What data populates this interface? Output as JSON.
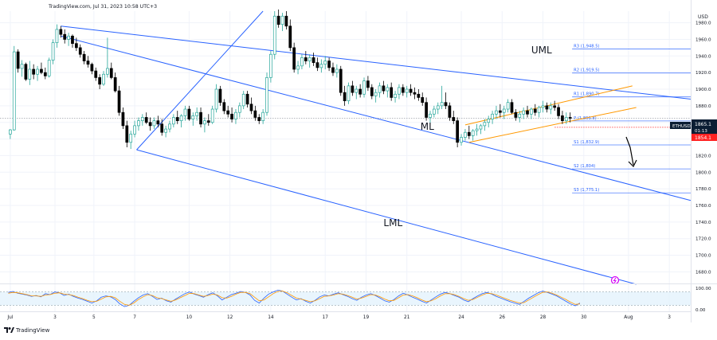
{
  "header": {
    "text": "TradingView.com, Jul 31, 2023 10:58 UTC+3"
  },
  "footer": {
    "logo_text": "TradingView"
  },
  "colors": {
    "up": "#26a69a",
    "down": "#000000",
    "channel": "#2962ff",
    "orange": "#ff9800",
    "price_tag": "#ff2222",
    "symbol_tag": "#0b1d33"
  },
  "chart_data": {
    "type": "candlestick",
    "symbol": "ETHUSD",
    "currency_label": "USD",
    "y_ticks": [
      "1980.0",
      "1960.0",
      "1940.0",
      "1920.0",
      "1900.0",
      "1880.0",
      "1860.0",
      "1840.0",
      "1820.0",
      "1800.0",
      "1780.0",
      "1760.0",
      "1740.0",
      "1720.0",
      "1700.0",
      "1680.0"
    ],
    "ylim": [
      1666,
      1994
    ],
    "x_ticks": [
      "Jul",
      "3",
      "5",
      "7",
      "10",
      "12",
      "14",
      "17",
      "19",
      "21",
      "24",
      "26",
      "28",
      "30",
      "Aug",
      "3"
    ],
    "x_tick_days": [
      0,
      2.3,
      4.3,
      6.4,
      9.2,
      11.3,
      13.4,
      16.2,
      18.3,
      20.4,
      23.2,
      25.3,
      27.4,
      29.5,
      31.8,
      33.9
    ],
    "xlim": [
      -0.2,
      35
    ],
    "last_price_label": "1865.1",
    "countdown_label": "01:13",
    "bid_label": "1854.1",
    "last_price": 1865.1,
    "bid_price": 1854.1,
    "pivots": [
      {
        "label": "R3 (1,948.5)",
        "value": 1948.5
      },
      {
        "label": "R2 (1,919.5)",
        "value": 1919.5
      },
      {
        "label": "R1 (1,890.7)",
        "value": 1890.7
      },
      {
        "label": "P (1,861.8)",
        "value": 1861.8
      },
      {
        "label": "S1 (1,832.9)",
        "value": 1832.9
      },
      {
        "label": "S2 (1,804)",
        "value": 1804
      },
      {
        "label": "S3 (1,775.1)",
        "value": 1775.1
      }
    ],
    "annotations": [
      {
        "text": "UML",
        "day": 26.8,
        "price": 1943
      },
      {
        "text": "ML",
        "day": 21.1,
        "price": 1851
      },
      {
        "text": "LML",
        "day": 19.2,
        "price": 1735
      }
    ],
    "pitchfork": {
      "origin": {
        "day": 6.5,
        "price": 1827
      },
      "upper_start": {
        "day": 2.6,
        "price": 1976
      },
      "upper_end": {
        "day": 35,
        "price": 1888
      },
      "median_end": {
        "day": 35,
        "price": 1766
      },
      "lower_end": {
        "day": 32.2,
        "price": 1665
      },
      "top_end": {
        "day": 13.0,
        "price": 1994
      }
    },
    "orange_lines": [
      {
        "from": {
          "day": 23.4,
          "price": 1857
        },
        "to": {
          "day": 32.0,
          "price": 1904
        }
      },
      {
        "from": {
          "day": 23.6,
          "price": 1836
        },
        "to": {
          "day": 32.2,
          "price": 1878
        }
      }
    ],
    "candles": [
      [
        0.0,
        1846,
        1852,
        1840,
        1851
      ],
      [
        0.2,
        1851,
        1952,
        1850,
        1945
      ],
      [
        0.4,
        1945,
        1948,
        1920,
        1925
      ],
      [
        0.6,
        1925,
        1935,
        1915,
        1930
      ],
      [
        0.8,
        1930,
        1932,
        1910,
        1912
      ],
      [
        1.0,
        1912,
        1934,
        1905,
        1924
      ],
      [
        1.2,
        1924,
        1930,
        1912,
        1918
      ],
      [
        1.4,
        1918,
        1928,
        1910,
        1924
      ],
      [
        1.6,
        1924,
        1932,
        1918,
        1920
      ],
      [
        1.8,
        1920,
        1926,
        1912,
        1916
      ],
      [
        2.0,
        1916,
        1938,
        1914,
        1935
      ],
      [
        2.2,
        1935,
        1960,
        1930,
        1956
      ],
      [
        2.4,
        1956,
        1978,
        1950,
        1972
      ],
      [
        2.6,
        1972,
        1976,
        1962,
        1966
      ],
      [
        2.8,
        1966,
        1972,
        1955,
        1960
      ],
      [
        3.0,
        1960,
        1968,
        1952,
        1964
      ],
      [
        3.2,
        1964,
        1966,
        1950,
        1955
      ],
      [
        3.4,
        1955,
        1962,
        1946,
        1950
      ],
      [
        3.6,
        1950,
        1954,
        1938,
        1942
      ],
      [
        3.8,
        1942,
        1946,
        1930,
        1934
      ],
      [
        4.0,
        1934,
        1940,
        1926,
        1930
      ],
      [
        4.2,
        1930,
        1932,
        1918,
        1922
      ],
      [
        4.4,
        1922,
        1926,
        1910,
        1914
      ],
      [
        4.6,
        1914,
        1918,
        1900,
        1906
      ],
      [
        4.8,
        1906,
        1922,
        1904,
        1918
      ],
      [
        5.0,
        1918,
        1962,
        1914,
        1925
      ],
      [
        5.2,
        1925,
        1932,
        1912,
        1914
      ],
      [
        5.4,
        1914,
        1920,
        1896,
        1898
      ],
      [
        5.6,
        1898,
        1904,
        1868,
        1872
      ],
      [
        5.8,
        1872,
        1878,
        1852,
        1856
      ],
      [
        6.0,
        1856,
        1862,
        1830,
        1836
      ],
      [
        6.2,
        1836,
        1850,
        1828,
        1846
      ],
      [
        6.4,
        1846,
        1862,
        1842,
        1856
      ],
      [
        6.6,
        1856,
        1866,
        1850,
        1862
      ],
      [
        6.8,
        1862,
        1870,
        1856,
        1866
      ],
      [
        7.0,
        1866,
        1872,
        1858,
        1860
      ],
      [
        7.2,
        1860,
        1866,
        1850,
        1856
      ],
      [
        7.4,
        1856,
        1866,
        1852,
        1862
      ],
      [
        7.6,
        1862,
        1868,
        1854,
        1858
      ],
      [
        7.8,
        1858,
        1864,
        1844,
        1848
      ],
      [
        8.0,
        1848,
        1856,
        1842,
        1852
      ],
      [
        8.2,
        1852,
        1862,
        1848,
        1858
      ],
      [
        8.4,
        1858,
        1870,
        1854,
        1866
      ],
      [
        8.6,
        1866,
        1874,
        1858,
        1862
      ],
      [
        8.8,
        1862,
        1870,
        1854,
        1868
      ],
      [
        9.0,
        1868,
        1880,
        1862,
        1876
      ],
      [
        9.2,
        1876,
        1880,
        1862,
        1864
      ],
      [
        9.4,
        1864,
        1872,
        1856,
        1868
      ],
      [
        9.6,
        1868,
        1878,
        1862,
        1872
      ],
      [
        9.8,
        1872,
        1878,
        1854,
        1858
      ],
      [
        10.0,
        1858,
        1866,
        1848,
        1862
      ],
      [
        10.2,
        1862,
        1870,
        1856,
        1860
      ],
      [
        10.4,
        1860,
        1880,
        1858,
        1876
      ],
      [
        10.6,
        1876,
        1906,
        1872,
        1900
      ],
      [
        10.8,
        1900,
        1904,
        1880,
        1884
      ],
      [
        11.0,
        1884,
        1888,
        1870,
        1874
      ],
      [
        11.2,
        1874,
        1880,
        1866,
        1870
      ],
      [
        11.4,
        1870,
        1878,
        1860,
        1864
      ],
      [
        11.6,
        1864,
        1876,
        1858,
        1872
      ],
      [
        11.8,
        1872,
        1884,
        1866,
        1880
      ],
      [
        12.0,
        1880,
        1898,
        1876,
        1894
      ],
      [
        12.2,
        1894,
        1898,
        1878,
        1882
      ],
      [
        12.4,
        1882,
        1890,
        1870,
        1874
      ],
      [
        12.6,
        1874,
        1880,
        1862,
        1866
      ],
      [
        12.8,
        1866,
        1870,
        1858,
        1862
      ],
      [
        13.0,
        1862,
        1876,
        1858,
        1872
      ],
      [
        13.2,
        1872,
        1920,
        1868,
        1914
      ],
      [
        13.4,
        1914,
        1946,
        1908,
        1942
      ],
      [
        13.6,
        1942,
        1994,
        1936,
        1988
      ],
      [
        13.8,
        1988,
        1996,
        1974,
        1978
      ],
      [
        14.0,
        1978,
        1992,
        1970,
        1988
      ],
      [
        14.2,
        1988,
        1994,
        1972,
        1976
      ],
      [
        14.4,
        1976,
        1984,
        1946,
        1950
      ],
      [
        14.6,
        1950,
        1956,
        1920,
        1924
      ],
      [
        14.8,
        1924,
        1934,
        1918,
        1928
      ],
      [
        15.0,
        1928,
        1942,
        1924,
        1938
      ],
      [
        15.2,
        1938,
        1946,
        1930,
        1934
      ],
      [
        15.4,
        1934,
        1942,
        1926,
        1938
      ],
      [
        15.6,
        1938,
        1944,
        1928,
        1932
      ],
      [
        15.8,
        1932,
        1938,
        1922,
        1926
      ],
      [
        16.0,
        1926,
        1936,
        1920,
        1930
      ],
      [
        16.2,
        1930,
        1940,
        1924,
        1934
      ],
      [
        16.4,
        1934,
        1938,
        1922,
        1926
      ],
      [
        16.6,
        1926,
        1932,
        1916,
        1920
      ],
      [
        16.8,
        1920,
        1930,
        1914,
        1924
      ],
      [
        17.0,
        1924,
        1928,
        1892,
        1896
      ],
      [
        17.2,
        1896,
        1904,
        1880,
        1886
      ],
      [
        17.4,
        1886,
        1908,
        1882,
        1904
      ],
      [
        17.6,
        1904,
        1910,
        1892,
        1896
      ],
      [
        17.8,
        1896,
        1904,
        1888,
        1900
      ],
      [
        18.0,
        1900,
        1906,
        1890,
        1894
      ],
      [
        18.2,
        1894,
        1914,
        1890,
        1910
      ],
      [
        18.4,
        1910,
        1916,
        1898,
        1902
      ],
      [
        18.6,
        1902,
        1906,
        1888,
        1892
      ],
      [
        18.8,
        1892,
        1900,
        1884,
        1896
      ],
      [
        19.0,
        1896,
        1908,
        1890,
        1904
      ],
      [
        19.2,
        1904,
        1910,
        1894,
        1898
      ],
      [
        19.4,
        1898,
        1906,
        1890,
        1902
      ],
      [
        19.6,
        1902,
        1908,
        1886,
        1890
      ],
      [
        19.8,
        1890,
        1898,
        1884,
        1894
      ],
      [
        20.0,
        1894,
        1906,
        1888,
        1902
      ],
      [
        20.2,
        1902,
        1906,
        1892,
        1896
      ],
      [
        20.4,
        1896,
        1904,
        1890,
        1900
      ],
      [
        20.6,
        1900,
        1906,
        1892,
        1896
      ],
      [
        20.8,
        1896,
        1902,
        1888,
        1894
      ],
      [
        21.0,
        1894,
        1900,
        1886,
        1890
      ],
      [
        21.2,
        1890,
        1896,
        1880,
        1884
      ],
      [
        21.4,
        1884,
        1890,
        1862,
        1866
      ],
      [
        21.6,
        1866,
        1874,
        1858,
        1870
      ],
      [
        21.8,
        1870,
        1880,
        1866,
        1876
      ],
      [
        22.0,
        1876,
        1884,
        1870,
        1880
      ],
      [
        22.2,
        1880,
        1904,
        1876,
        1884
      ],
      [
        22.4,
        1884,
        1896,
        1876,
        1880
      ],
      [
        22.6,
        1880,
        1884,
        1862,
        1866
      ],
      [
        22.8,
        1866,
        1874,
        1858,
        1862
      ],
      [
        23.0,
        1862,
        1866,
        1830,
        1836
      ],
      [
        23.2,
        1836,
        1846,
        1832,
        1842
      ],
      [
        23.4,
        1842,
        1852,
        1838,
        1848
      ],
      [
        23.6,
        1848,
        1856,
        1840,
        1844
      ],
      [
        23.8,
        1844,
        1852,
        1838,
        1850
      ],
      [
        24.0,
        1850,
        1858,
        1844,
        1852
      ],
      [
        24.2,
        1852,
        1858,
        1846,
        1856
      ],
      [
        24.4,
        1856,
        1864,
        1850,
        1860
      ],
      [
        24.6,
        1860,
        1868,
        1854,
        1864
      ],
      [
        24.8,
        1864,
        1874,
        1858,
        1870
      ],
      [
        25.0,
        1870,
        1880,
        1864,
        1874
      ],
      [
        25.2,
        1874,
        1882,
        1866,
        1872
      ],
      [
        25.4,
        1872,
        1880,
        1864,
        1876
      ],
      [
        25.6,
        1876,
        1888,
        1872,
        1884
      ],
      [
        25.8,
        1884,
        1888,
        1870,
        1872
      ],
      [
        26.0,
        1872,
        1876,
        1862,
        1866
      ],
      [
        26.2,
        1866,
        1874,
        1860,
        1870
      ],
      [
        26.4,
        1870,
        1878,
        1864,
        1874
      ],
      [
        26.6,
        1874,
        1880,
        1866,
        1870
      ],
      [
        26.8,
        1870,
        1878,
        1864,
        1876
      ],
      [
        27.0,
        1876,
        1882,
        1868,
        1872
      ],
      [
        27.2,
        1872,
        1880,
        1866,
        1878
      ],
      [
        27.4,
        1878,
        1886,
        1872,
        1880
      ],
      [
        27.6,
        1880,
        1884,
        1872,
        1876
      ],
      [
        27.8,
        1876,
        1884,
        1870,
        1880
      ],
      [
        28.0,
        1880,
        1886,
        1874,
        1878
      ],
      [
        28.2,
        1878,
        1882,
        1864,
        1868
      ],
      [
        28.4,
        1868,
        1874,
        1858,
        1862
      ],
      [
        28.6,
        1862,
        1872,
        1858,
        1866
      ],
      [
        28.8,
        1866,
        1872,
        1860,
        1865
      ]
    ],
    "stochastic": {
      "ylim": [
        0,
        100
      ],
      "ticks": [
        "100.00",
        "0.00"
      ],
      "levels": [
        20,
        80
      ],
      "k": [
        78,
        82,
        74,
        70,
        66,
        60,
        64,
        58,
        72,
        68,
        80,
        76,
        64,
        70,
        60,
        52,
        46,
        38,
        30,
        40,
        56,
        62,
        58,
        46,
        26,
        14,
        20,
        38,
        54,
        66,
        72,
        60,
        46,
        52,
        40,
        34,
        48,
        60,
        72,
        80,
        70,
        64,
        56,
        68,
        76,
        62,
        44,
        56,
        68,
        74,
        82,
        78,
        66,
        42,
        30,
        52,
        70,
        80,
        88,
        84,
        70,
        56,
        44,
        50,
        38,
        30,
        42,
        58,
        66,
        62,
        70,
        76,
        68,
        60,
        50,
        42,
        56,
        66,
        72,
        64,
        52,
        40,
        34,
        46,
        62,
        74,
        66,
        56,
        48,
        38,
        30,
        44,
        58,
        70,
        78,
        72,
        64,
        56,
        44,
        36,
        50,
        62,
        72,
        78,
        70,
        60,
        52,
        44,
        36,
        30,
        24,
        38,
        52,
        64,
        76,
        84,
        78,
        70,
        62,
        50,
        38,
        26,
        18,
        30
      ],
      "d": [
        74,
        78,
        76,
        72,
        68,
        62,
        62,
        60,
        66,
        68,
        74,
        76,
        70,
        68,
        64,
        56,
        50,
        42,
        36,
        38,
        48,
        58,
        60,
        54,
        38,
        24,
        20,
        30,
        46,
        58,
        68,
        64,
        54,
        50,
        44,
        38,
        44,
        54,
        64,
        74,
        72,
        66,
        60,
        64,
        70,
        66,
        54,
        52,
        60,
        70,
        78,
        78,
        72,
        56,
        40,
        44,
        58,
        72,
        82,
        84,
        76,
        64,
        52,
        48,
        42,
        36,
        40,
        50,
        60,
        62,
        66,
        72,
        70,
        64,
        56,
        48,
        52,
        60,
        68,
        66,
        58,
        48,
        40,
        42,
        54,
        66,
        68,
        62,
        54,
        44,
        36,
        40,
        50,
        62,
        72,
        72,
        68,
        60,
        50,
        42,
        46,
        56,
        66,
        74,
        72,
        66,
        58,
        50,
        42,
        36,
        30,
        32,
        44,
        56,
        68,
        78,
        80,
        74,
        66,
        56,
        46,
        34,
        24,
        26
      ]
    }
  }
}
